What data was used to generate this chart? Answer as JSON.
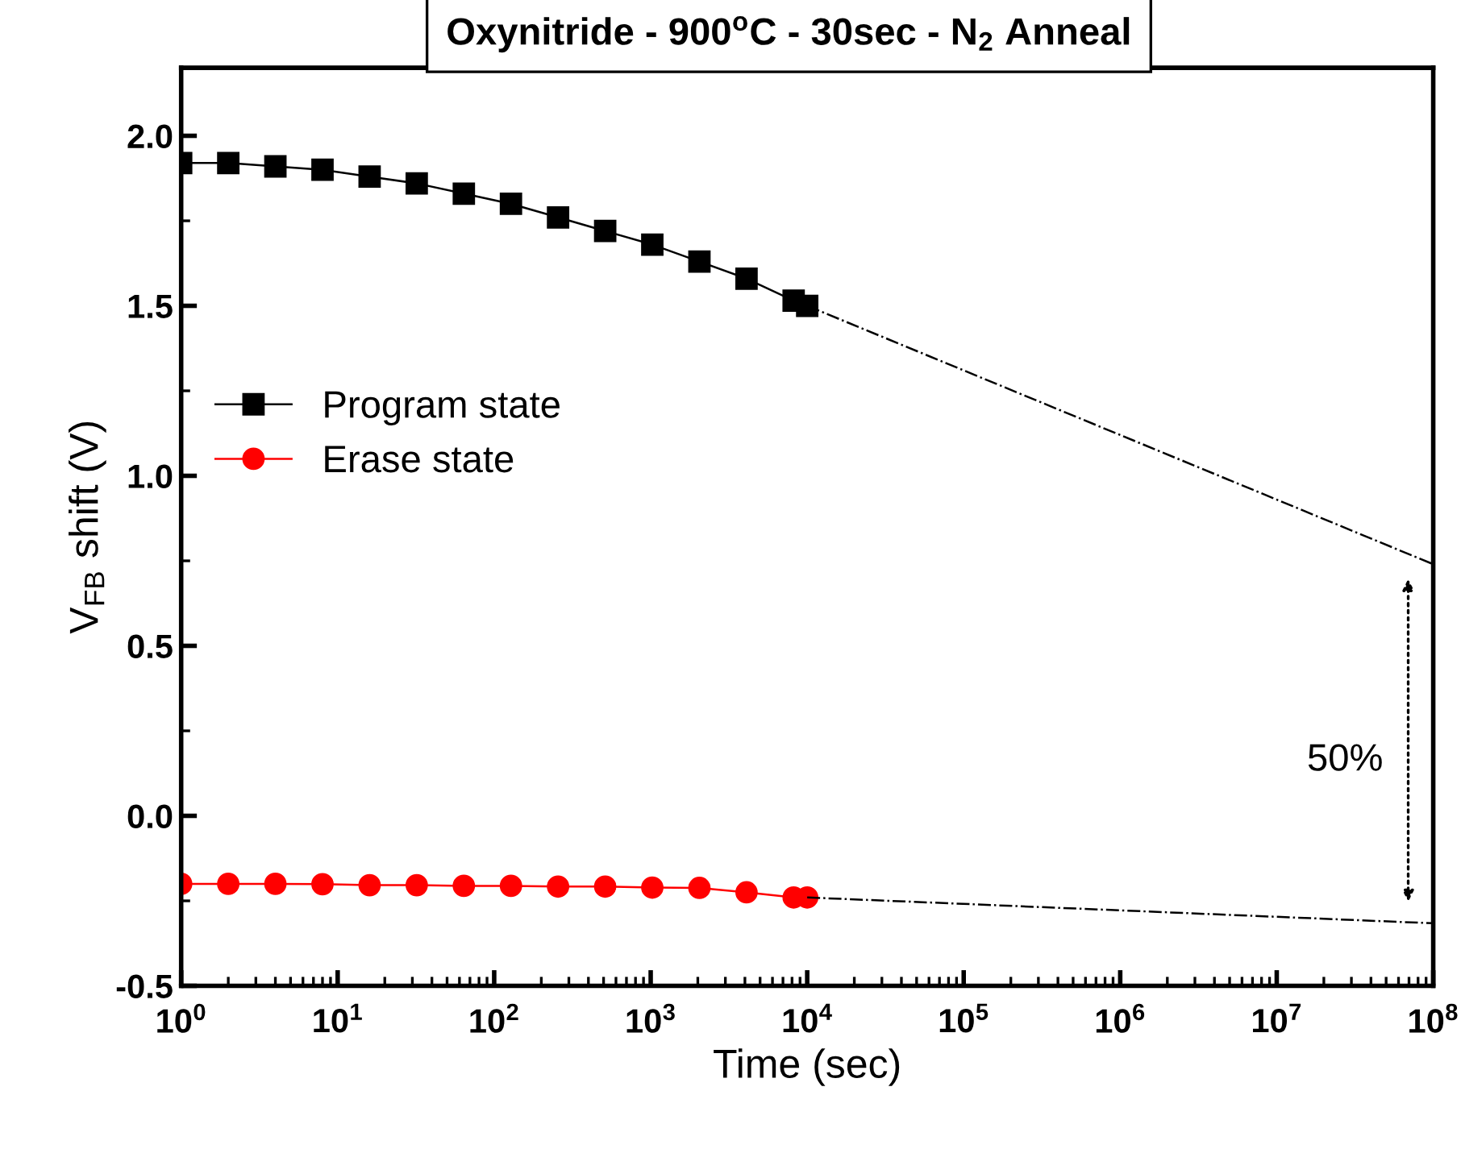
{
  "chart_data": {
    "type": "line",
    "title": "Oxynitride - 900$^{o}$C - 30sec - N$_{2}$ Anneal",
    "xlabel": "Time (sec)",
    "ylabel": "V$_{FB}$ shift (V)",
    "log": "x",
    "xlim": [
      1,
      100000000
    ],
    "ylim": [
      -0.5,
      2.2
    ],
    "xticks": [
      {
        "value": 1,
        "label": "10$^{0}$"
      },
      {
        "value": 10,
        "label": "10$^{1}$"
      },
      {
        "value": 100,
        "label": "10$^{2}$"
      },
      {
        "value": 1000,
        "label": "10$^{3}$"
      },
      {
        "value": 10000,
        "label": "10$^{4}$"
      },
      {
        "value": 100000,
        "label": "10$^{5}$"
      },
      {
        "value": 1000000,
        "label": "10$^{6}$"
      },
      {
        "value": 10000000,
        "label": "10$^{7}$"
      },
      {
        "value": 100000000,
        "label": "10$^{8}$"
      }
    ],
    "yticks": [
      -0.5,
      {
        "value": 0,
        "label": "0.0"
      },
      0.5,
      {
        "value": 1,
        "label": "1.0"
      },
      1.5,
      {
        "value": 2,
        "label": "2.0"
      }
    ],
    "grid": false,
    "legend": "center left",
    "series": [
      {
        "name": "Program state",
        "color": "#000000",
        "marker": "square",
        "line_style": "solid",
        "x": [
          1,
          2,
          4,
          8,
          16,
          32,
          64,
          128,
          256,
          512,
          1024,
          2048,
          4096,
          8192,
          10000
        ],
        "values": [
          1.92,
          1.92,
          1.91,
          1.9,
          1.88,
          1.86,
          1.83,
          1.8,
          1.76,
          1.72,
          1.68,
          1.63,
          1.58,
          1.515,
          1.5
        ]
      },
      {
        "name": "Erase state",
        "color": "#ff0000",
        "marker": "circle",
        "line_style": "solid",
        "x": [
          1,
          2,
          4,
          8,
          16,
          32,
          64,
          128,
          256,
          512,
          1024,
          2048,
          4096,
          8192,
          10000
        ],
        "values": [
          -0.2,
          -0.2,
          -0.2,
          -0.201,
          -0.204,
          -0.204,
          -0.206,
          -0.206,
          -0.208,
          -0.208,
          -0.211,
          -0.212,
          -0.225,
          -0.24,
          -0.24
        ]
      },
      {
        "color": "#000000",
        "marker": "none",
        "line_style": "dashdot",
        "x": [
          10000,
          100000000
        ],
        "values": [
          1.5,
          0.74
        ]
      },
      {
        "color": "#000000",
        "marker": "none",
        "line_style": "dashdot",
        "x": [
          10000,
          100000000
        ],
        "values": [
          -0.24,
          -0.316
        ]
      }
    ],
    "annotations": [
      "50%"
    ]
  }
}
